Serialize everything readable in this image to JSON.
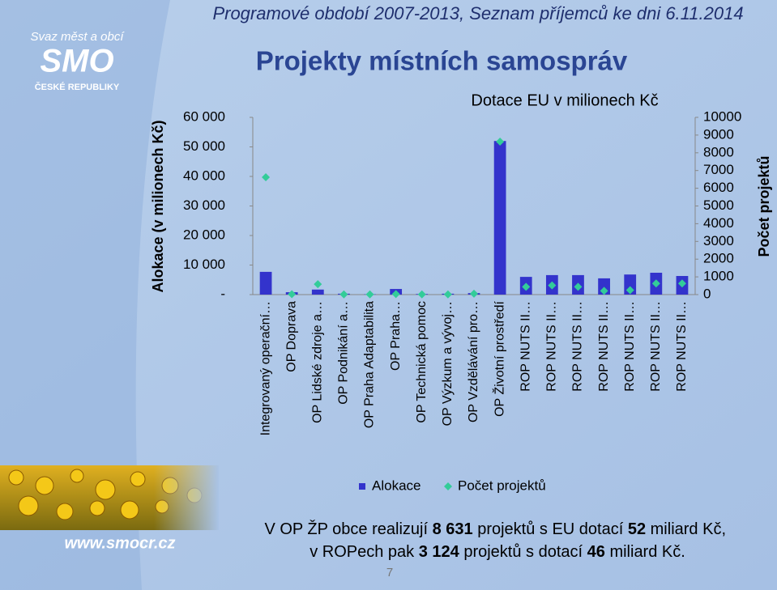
{
  "header": {
    "subtitle": "Programové období 2007-2013, Seznam příjemců ke dni 6.11.2014",
    "title": "Projekty místních samospráv"
  },
  "logo": {
    "top": "Svaz měst a obcí",
    "mark": "SMO",
    "bottom": "ČESKÉ REPUBLIKY",
    "url": "www.smocr.cz"
  },
  "chart_data": {
    "type": "bar",
    "title": "Dotace EU v milionech Kč",
    "y_label": "Alokace (v milionech Kč)",
    "y2_label": "Počet projektů",
    "categories": [
      "Integrovaný operační…",
      "OP Doprava",
      "OP Lidské zdroje a…",
      "OP Podnikání a…",
      "OP Praha Adaptabilita",
      "OP Praha…",
      "OP Technická pomoc",
      "OP Výzkum a vývoj…",
      "OP Vzdělávání pro…",
      "OP Životní prostředí",
      "ROP NUTS II…",
      "ROP NUTS II…",
      "ROP NUTS II…",
      "ROP NUTS II…",
      "ROP NUTS II…",
      "ROP NUTS II…",
      "ROP NUTS II…"
    ],
    "series": [
      {
        "name": "Alokace",
        "type": "bar",
        "color": "#3333cc",
        "values": [
          7700,
          800,
          1700,
          300,
          100,
          1900,
          200,
          300,
          500,
          52000,
          6000,
          6600,
          6600,
          5500,
          6800,
          7400,
          6300
        ]
      },
      {
        "name": "Počet projektů",
        "type": "scatter",
        "axis": "y2",
        "color": "#33cc99",
        "values": [
          6620,
          20,
          590,
          10,
          10,
          30,
          10,
          10,
          50,
          8631,
          440,
          520,
          440,
          210,
          250,
          630,
          630
        ]
      }
    ],
    "ylim": [
      0,
      60000
    ],
    "yticks": [
      {
        "value": 0,
        "label": "-"
      },
      {
        "value": 10000,
        "label": "10 000"
      },
      {
        "value": 20000,
        "label": "20 000"
      },
      {
        "value": 30000,
        "label": "30 000"
      },
      {
        "value": 40000,
        "label": "40 000"
      },
      {
        "value": 50000,
        "label": "50 000"
      },
      {
        "value": 60000,
        "label": "60 000"
      }
    ],
    "y2lim": [
      0,
      10000
    ],
    "y2ticks": [
      0,
      1000,
      2000,
      3000,
      4000,
      5000,
      6000,
      7000,
      8000,
      9000,
      10000
    ],
    "legend": "bottom"
  },
  "footer": {
    "line1": [
      "V OP ŽP obce realizují ",
      "8 631",
      " projektů s EU dotací ",
      "52",
      " miliard Kč,"
    ],
    "line2": [
      "v ROPech pak ",
      "3 124",
      " projektů s dotací ",
      "46",
      " miliard Kč."
    ]
  },
  "page_number": "7"
}
